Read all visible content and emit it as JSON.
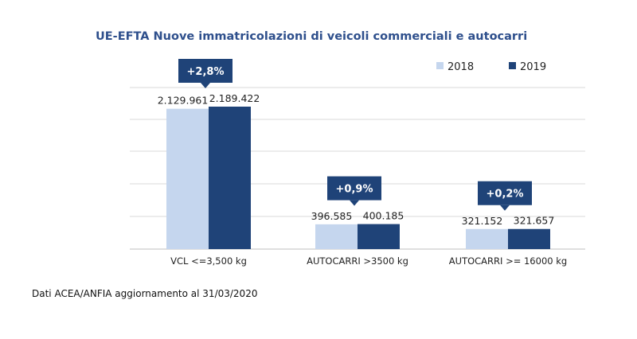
{
  "chart_data": {
    "type": "bar",
    "title": "UE-EFTA Nuove immatricolazioni di veicoli commerciali e autocarri",
    "categories": [
      "VCL <=3,500 kg",
      "AUTOCARRI >3500 kg",
      "AUTOCARRI >= 16000 kg"
    ],
    "series": [
      {
        "name": "2018",
        "color": "#c5d6ee",
        "values": [
          2129961,
          396585,
          321152
        ],
        "labels": [
          "2.129.961",
          "396.585",
          "321.152"
        ]
      },
      {
        "name": "2019",
        "color": "#1f4378",
        "values": [
          2189422,
          400185,
          321657
        ],
        "labels": [
          "2.189.422",
          "400.185",
          "321.657"
        ]
      }
    ],
    "annotations": [
      "+2,8%",
      "+0,9%",
      "+0,2%"
    ],
    "annotation_color": "#1f4378",
    "grid": true,
    "legend_position": "top-right",
    "axis_break": true
  },
  "footnote": "Dati ACEA/ANFIA aggiornamento al 31/03/2020"
}
